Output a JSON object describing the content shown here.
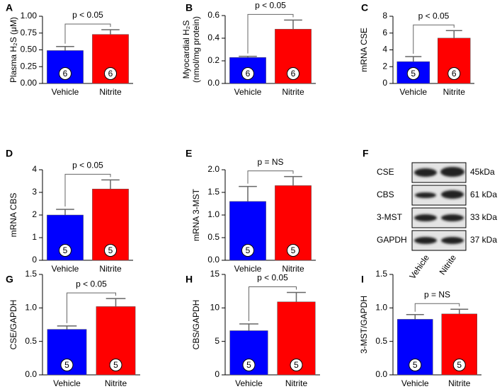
{
  "chart_data": [
    {
      "type": "bar",
      "letter": "A",
      "ylabel": [
        "Plasma H₂S (μM)"
      ],
      "categories": [
        "Vehicle",
        "Nitrite"
      ],
      "values": [
        0.49,
        0.73
      ],
      "errors": [
        0.06,
        0.07
      ],
      "colors": [
        "#0000ff",
        "#ff0000"
      ],
      "n_labels": [
        "6",
        "6"
      ],
      "significance": "p < 0.05",
      "ylim": [
        0,
        1.0
      ],
      "yticks": [
        {
          "value": 0,
          "label": "0.00"
        },
        {
          "value": 0.25,
          "label": "0.25"
        },
        {
          "value": 0.5,
          "label": "0.50"
        },
        {
          "value": 0.75,
          "label": "0.75"
        },
        {
          "value": 1.0,
          "label": "1.00"
        }
      ]
    },
    {
      "type": "bar",
      "letter": "B",
      "ylabel": [
        "Myocardial H₂S",
        "(nmol/mg protein)"
      ],
      "categories": [
        "Vehicle",
        "Nitrite"
      ],
      "values": [
        0.23,
        0.48
      ],
      "errors": [
        0.01,
        0.08
      ],
      "colors": [
        "#0000ff",
        "#ff0000"
      ],
      "n_labels": [
        "6",
        "6"
      ],
      "significance": "p < 0.05",
      "ylim": [
        0,
        0.6
      ],
      "yticks": [
        {
          "value": 0,
          "label": "0.0"
        },
        0.2,
        0.4,
        0.6
      ]
    },
    {
      "type": "bar",
      "letter": "C",
      "ylabel": [
        "mRNA CSE"
      ],
      "categories": [
        "Vehicle",
        "Nitrite"
      ],
      "values": [
        2.6,
        5.4
      ],
      "errors": [
        0.6,
        0.9
      ],
      "colors": [
        "#0000ff",
        "#ff0000"
      ],
      "n_labels": [
        "5",
        "6"
      ],
      "significance": "p < 0.05",
      "ylim": [
        0,
        8
      ],
      "yticks": [
        0,
        2,
        4,
        6,
        8
      ]
    },
    {
      "type": "bar",
      "letter": "D",
      "ylabel": [
        "mRNA CBS"
      ],
      "categories": [
        "Vehicle",
        "Nitrite"
      ],
      "values": [
        2.0,
        3.15
      ],
      "errors": [
        0.25,
        0.4
      ],
      "colors": [
        "#0000ff",
        "#ff0000"
      ],
      "n_labels": [
        "5",
        "5"
      ],
      "significance": "p < 0.05",
      "ylim": [
        0,
        4
      ],
      "yticks": [
        0,
        1,
        2,
        3,
        4
      ]
    },
    {
      "type": "bar",
      "letter": "E",
      "ylabel": [
        "mRNA 3-MST"
      ],
      "categories": [
        "Vehicle",
        "Nitrite"
      ],
      "values": [
        1.3,
        1.65
      ],
      "errors": [
        0.33,
        0.2
      ],
      "colors": [
        "#0000ff",
        "#ff0000"
      ],
      "n_labels": [
        "5",
        "5"
      ],
      "significance": "p = NS",
      "ylim": [
        0,
        2.0
      ],
      "yticks": [
        {
          "value": 0,
          "label": "0.0"
        },
        0.5,
        {
          "value": 1.0,
          "label": "1.0"
        },
        1.5,
        {
          "value": 2.0,
          "label": "2.0"
        }
      ]
    },
    {
      "type": "bar",
      "letter": "G",
      "ylabel": [
        "CSE/GAPDH"
      ],
      "categories": [
        "Vehicle",
        "Nitrite"
      ],
      "values": [
        0.68,
        1.02
      ],
      "errors": [
        0.05,
        0.12
      ],
      "colors": [
        "#0000ff",
        "#ff0000"
      ],
      "n_labels": [
        "5",
        "5"
      ],
      "significance": "p < 0.05",
      "ylim": [
        0,
        1.5
      ],
      "yticks": [
        {
          "value": 0,
          "label": "0.0"
        },
        0.5,
        {
          "value": 1.0,
          "label": "1.0"
        },
        1.5
      ]
    },
    {
      "type": "bar",
      "letter": "H",
      "ylabel": [
        "CBS/GAPDH"
      ],
      "categories": [
        "Vehicle",
        "Nitrite"
      ],
      "values": [
        6.6,
        10.9
      ],
      "errors": [
        1.0,
        1.4
      ],
      "colors": [
        "#0000ff",
        "#ff0000"
      ],
      "n_labels": [
        "5",
        "5"
      ],
      "significance": "p < 0.05",
      "ylim": [
        0,
        15
      ],
      "yticks": [
        0,
        5,
        10,
        15
      ]
    },
    {
      "type": "bar",
      "letter": "I",
      "ylabel": [
        "3-MST/GAPDH"
      ],
      "categories": [
        "Vehicle",
        "Nitrite"
      ],
      "values": [
        0.83,
        0.91
      ],
      "errors": [
        0.07,
        0.07
      ],
      "colors": [
        "#0000ff",
        "#ff0000"
      ],
      "n_labels": [
        "5",
        "5"
      ],
      "significance": "p = NS",
      "ylim": [
        0,
        1.5
      ],
      "yticks": [
        {
          "value": 0,
          "label": "0.0"
        },
        0.5,
        {
          "value": 1.0,
          "label": "1.0"
        },
        1.5
      ]
    }
  ],
  "blot": {
    "letter": "F",
    "rows": [
      {
        "label": "CSE",
        "size": "45kDa"
      },
      {
        "label": "CBS",
        "size": "61 kDa"
      },
      {
        "label": "3-MST",
        "size": "33 kDa"
      },
      {
        "label": "GAPDH",
        "size": "37 kDa"
      }
    ],
    "lanes": [
      "Vehicle",
      "Nitrite"
    ]
  }
}
